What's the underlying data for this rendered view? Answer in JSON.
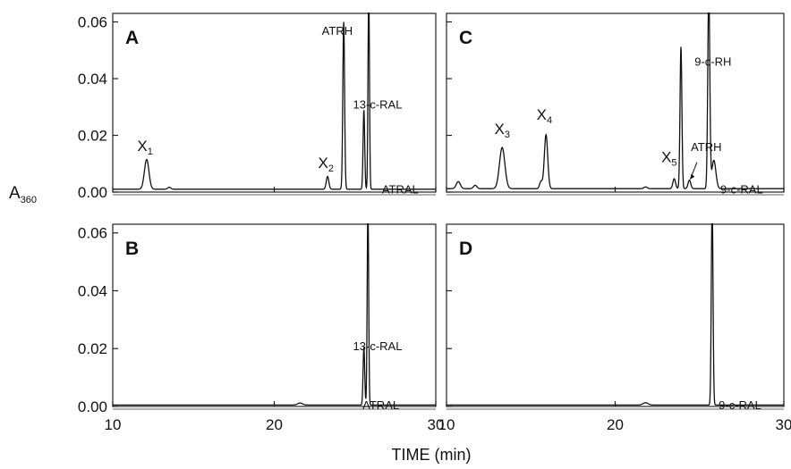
{
  "chart_data": {
    "type": "line",
    "xlabel": "TIME (min)",
    "ylabel": "A",
    "ylabel_subscript": "360",
    "xlim": [
      10,
      30
    ],
    "ylim": [
      0,
      0.063
    ],
    "xticks": [
      "10",
      "20",
      "30"
    ],
    "yticks": [
      "0.00",
      "0.02",
      "0.04",
      "0.06"
    ],
    "panels": [
      {
        "label": "A",
        "baseline": 0.001,
        "peaks": [
          {
            "t": 12.1,
            "h": 0.0105,
            "w": 0.14
          },
          {
            "t": 13.5,
            "h": 0.0007,
            "w": 0.1
          },
          {
            "t": 23.3,
            "h": 0.0045,
            "w": 0.08
          },
          {
            "t": 24.3,
            "h": 0.059,
            "w": 0.055
          },
          {
            "t": 25.55,
            "h": 0.028,
            "w": 0.05
          },
          {
            "t": 25.85,
            "h": 0.07,
            "w": 0.045
          }
        ],
        "annotations": [
          {
            "text": "X",
            "sub": "1",
            "t": 12.0,
            "y": 0.0145
          },
          {
            "text": "X",
            "sub": "2",
            "t": 23.2,
            "y": 0.0085
          },
          {
            "text": "ATRH",
            "t": 23.9,
            "y": 0.0555
          },
          {
            "text": "13-c-RAL",
            "t": 26.4,
            "y": 0.0295
          },
          {
            "text": "ATRAL",
            "t": 27.8,
            "y": -0.0005
          }
        ]
      },
      {
        "label": "B",
        "baseline": 0.0005,
        "peaks": [
          {
            "t": 21.6,
            "h": 0.0007,
            "w": 0.15
          },
          {
            "t": 25.55,
            "h": 0.02,
            "w": 0.05
          },
          {
            "t": 25.8,
            "h": 0.07,
            "w": 0.045
          }
        ],
        "annotations": [
          {
            "text": "13-c-RAL",
            "t": 26.4,
            "y": 0.0195
          },
          {
            "text": "ATRAL",
            "t": 26.6,
            "y": -0.001
          }
        ]
      },
      {
        "label": "C",
        "baseline": 0.0012,
        "peaks": [
          {
            "t": 10.7,
            "h": 0.0025,
            "w": 0.12
          },
          {
            "t": 11.7,
            "h": 0.0012,
            "w": 0.1
          },
          {
            "t": 13.3,
            "h": 0.0145,
            "w": 0.16
          },
          {
            "t": 15.6,
            "h": 0.0025,
            "w": 0.08
          },
          {
            "t": 15.9,
            "h": 0.019,
            "w": 0.1
          },
          {
            "t": 21.8,
            "h": 0.0006,
            "w": 0.1
          },
          {
            "t": 23.5,
            "h": 0.0035,
            "w": 0.08
          },
          {
            "t": 23.9,
            "h": 0.05,
            "w": 0.055
          },
          {
            "t": 24.4,
            "h": 0.003,
            "w": 0.08
          },
          {
            "t": 25.55,
            "h": 0.07,
            "w": 0.06
          },
          {
            "t": 25.85,
            "h": 0.01,
            "w": 0.12
          }
        ],
        "annotations": [
          {
            "text": "X",
            "sub": "3",
            "t": 13.3,
            "y": 0.0205
          },
          {
            "text": "X",
            "sub": "4",
            "t": 15.8,
            "y": 0.0255
          },
          {
            "text": "X",
            "sub": "5",
            "t": 23.2,
            "y": 0.0105
          },
          {
            "text": "9-c-RH",
            "t": 25.8,
            "y": 0.0445
          },
          {
            "text": "ATRH",
            "t": 25.4,
            "y": 0.0145
          },
          {
            "text": "9-c-RAL",
            "t": 27.5,
            "y": -0.0005
          }
        ]
      },
      {
        "label": "D",
        "baseline": 0.0005,
        "peaks": [
          {
            "t": 21.8,
            "h": 0.0008,
            "w": 0.15
          },
          {
            "t": 25.75,
            "h": 0.07,
            "w": 0.05
          }
        ],
        "annotations": [
          {
            "text": "9-c-RAL",
            "t": 27.4,
            "y": -0.001
          }
        ]
      }
    ]
  }
}
